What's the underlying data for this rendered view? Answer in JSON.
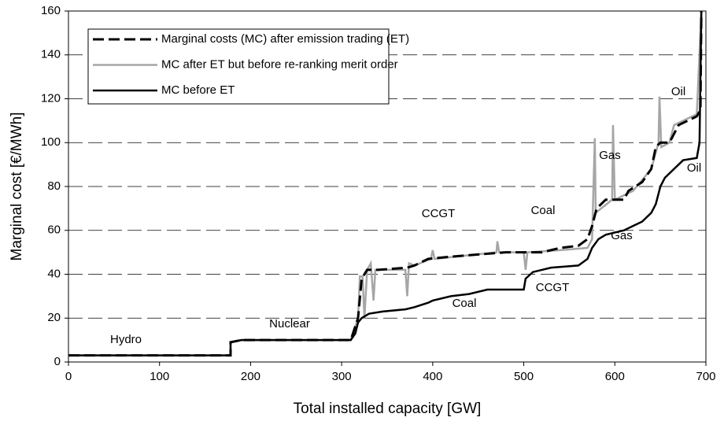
{
  "chart_data": {
    "type": "line",
    "x_label": "Total installed capacity [GW]",
    "y_label": "Marginal cost [€/MWh]",
    "xlim": [
      0,
      700
    ],
    "xticks": [
      0,
      100,
      200,
      300,
      400,
      500,
      600,
      700
    ],
    "ylim": [
      0,
      160
    ],
    "yticks": [
      0,
      20,
      40,
      60,
      80,
      100,
      120,
      140,
      160
    ],
    "grid": true,
    "annotations": [
      "Hydro",
      "Nuclear",
      "CCGT",
      "Coal",
      "Gas",
      "Oil",
      "Coal",
      "CCGT",
      "Gas",
      "Oil"
    ],
    "series": [
      {
        "name": "Marginal costs (MC) after emission trading (ET)",
        "color": "#000000",
        "dashed": true,
        "x": [
          0,
          178,
          178,
          190,
          310,
          318,
          322,
          328,
          340,
          372,
          380,
          395,
          420,
          450,
          480,
          520,
          540,
          560,
          570,
          575,
          580,
          590,
          610,
          615,
          630,
          640,
          645,
          650,
          660,
          670,
          690,
          694,
          695
        ],
        "values": [
          3,
          3,
          9,
          10,
          10,
          20,
          38,
          42,
          42,
          43,
          44,
          47,
          48,
          49,
          50,
          50,
          52,
          53,
          56,
          62,
          70,
          74,
          74,
          78,
          82,
          88,
          98,
          100,
          100,
          108,
          112,
          115,
          160
        ]
      },
      {
        "name": "MC after ET but before re-ranking merit order",
        "color": "#a6a6a6",
        "dashed": false,
        "x": [
          0,
          178,
          178,
          190,
          310,
          318,
          320,
          323,
          325,
          328,
          332,
          335,
          337,
          370,
          372,
          374,
          380,
          398,
          400,
          402,
          470,
          471,
          473,
          500,
          502,
          504,
          540,
          570,
          575,
          578,
          579,
          597,
          598,
          600,
          620,
          640,
          648,
          649,
          651,
          660,
          665,
          690,
          695
        ],
        "values": [
          3,
          3,
          9,
          10,
          10,
          20,
          39,
          39,
          20,
          42,
          45,
          28,
          42,
          42,
          30,
          45,
          44,
          47,
          51,
          47,
          50,
          55,
          50,
          50,
          42,
          50,
          51,
          52,
          56,
          102,
          68,
          74,
          108,
          74,
          78,
          88,
          100,
          121,
          98,
          100,
          108,
          113,
          160
        ]
      },
      {
        "name": "MC before ET",
        "color": "#000000",
        "dashed": false,
        "x": [
          0,
          178,
          178,
          190,
          310,
          315,
          318,
          322,
          330,
          345,
          370,
          380,
          395,
          400,
          420,
          440,
          460,
          500,
          502,
          510,
          530,
          560,
          570,
          575,
          582,
          590,
          610,
          620,
          630,
          640,
          645,
          650,
          655,
          665,
          675,
          690,
          693,
          695
        ],
        "values": [
          3,
          3,
          9,
          10,
          10,
          13,
          18,
          20,
          22,
          23,
          24,
          25,
          27,
          28,
          30,
          31,
          33,
          33,
          38,
          41,
          43,
          44,
          47,
          52,
          56,
          58,
          60,
          62,
          64,
          68,
          72,
          80,
          84,
          88,
          92,
          93,
          100,
          160
        ]
      }
    ]
  }
}
